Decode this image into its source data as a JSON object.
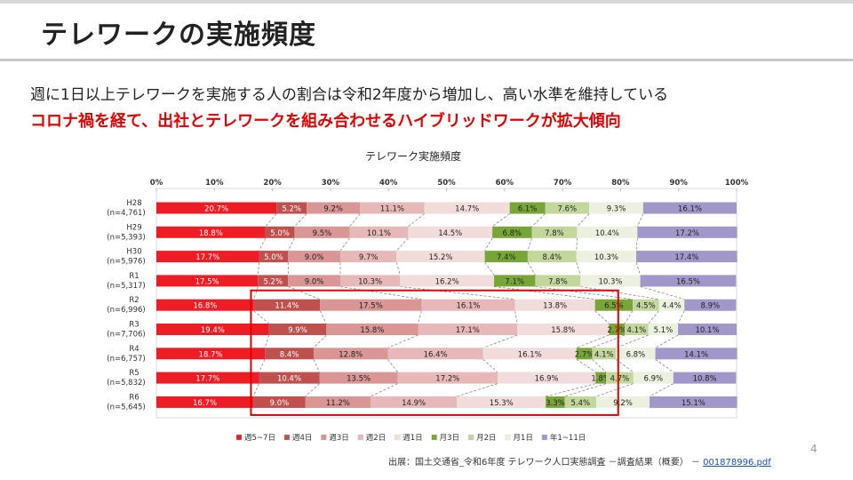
{
  "header": {
    "title": "テレワークの実施頻度",
    "subtitle": "週に1日以上テレワークを実施する人の割合は令和2年度から増加し、高い水準を維持している",
    "highlight": "コロナ禍を経て、出社とテレワークを組み合わせるハイブリッドワークが拡大傾向"
  },
  "footer": {
    "source_text": "出展：国土交通省_令和6年度 テレワーク人口実態調査 －調査結果（概要） －",
    "source_link": "001878996.pdf",
    "page_number": "4"
  },
  "chart_data": {
    "type": "bar",
    "orientation": "horizontal",
    "stacked": true,
    "normalized": true,
    "title": "テレワーク実施頻度",
    "xlim": [
      0,
      100
    ],
    "xticks": [
      "0%",
      "10%",
      "20%",
      "30%",
      "40%",
      "50%",
      "60%",
      "70%",
      "80%",
      "90%",
      "100%"
    ],
    "categories": [
      [
        "H28",
        "(n=4,761)"
      ],
      [
        "H29",
        "(n=5,393)"
      ],
      [
        "H30",
        "(n=5,976)"
      ],
      [
        "R1",
        "(n=5,317)"
      ],
      [
        "R2",
        "(n=6,996)"
      ],
      [
        "R3",
        "(n=7,706)"
      ],
      [
        "R4",
        "(n=6,757)"
      ],
      [
        "R5",
        "(n=5,832)"
      ],
      [
        "R6",
        "(n=5,645)"
      ]
    ],
    "series": [
      {
        "name": "週5~7日",
        "color": "#ee1c24",
        "label_color": "#ffffff",
        "values": [
          20.7,
          18.8,
          17.7,
          17.5,
          16.8,
          19.4,
          18.7,
          17.7,
          16.7
        ]
      },
      {
        "name": "週4日",
        "color": "#c0504d",
        "label_color": "#ffffff",
        "values": [
          5.2,
          5.0,
          5.0,
          5.2,
          11.4,
          9.9,
          8.4,
          10.4,
          9.0
        ]
      },
      {
        "name": "週3日",
        "color": "#d99694",
        "label_color": "#222222",
        "values": [
          9.2,
          9.5,
          9.0,
          9.0,
          17.5,
          15.8,
          12.8,
          13.5,
          11.2
        ]
      },
      {
        "name": "週2日",
        "color": "#e6b9b8",
        "label_color": "#222222",
        "values": [
          11.1,
          10.1,
          9.7,
          10.3,
          16.1,
          17.1,
          16.4,
          17.2,
          14.9
        ]
      },
      {
        "name": "週1日",
        "color": "#f2dcdb",
        "label_color": "#222222",
        "values": [
          14.7,
          14.5,
          15.2,
          16.2,
          13.8,
          15.8,
          16.1,
          16.9,
          15.3
        ]
      },
      {
        "name": "月3日",
        "color": "#77a538",
        "label_color": "#222222",
        "values": [
          6.1,
          6.8,
          7.4,
          7.1,
          6.5,
          2.7,
          2.7,
          1.8,
          3.3
        ]
      },
      {
        "name": "月2日",
        "color": "#c3d69b",
        "label_color": "#222222",
        "values": [
          7.6,
          7.8,
          8.4,
          7.8,
          4.5,
          4.1,
          4.1,
          4.7,
          5.4
        ]
      },
      {
        "name": "月1日",
        "color": "#ebf1de",
        "label_color": "#222222",
        "values": [
          9.3,
          10.4,
          10.3,
          10.3,
          4.4,
          5.1,
          6.8,
          6.9,
          9.2
        ]
      },
      {
        "name": "年1~11日",
        "color": "#a197c9",
        "label_color": "#222222",
        "values": [
          16.1,
          17.2,
          17.4,
          16.5,
          8.9,
          10.1,
          14.1,
          10.8,
          15.1
        ]
      }
    ],
    "value_suffix": "%",
    "highlight_rows": [
      "R2",
      "R6"
    ],
    "highlight_series": [
      "週5~7日",
      "週1日"
    ],
    "highlight_color": "#e00000",
    "legend": "bottom"
  }
}
